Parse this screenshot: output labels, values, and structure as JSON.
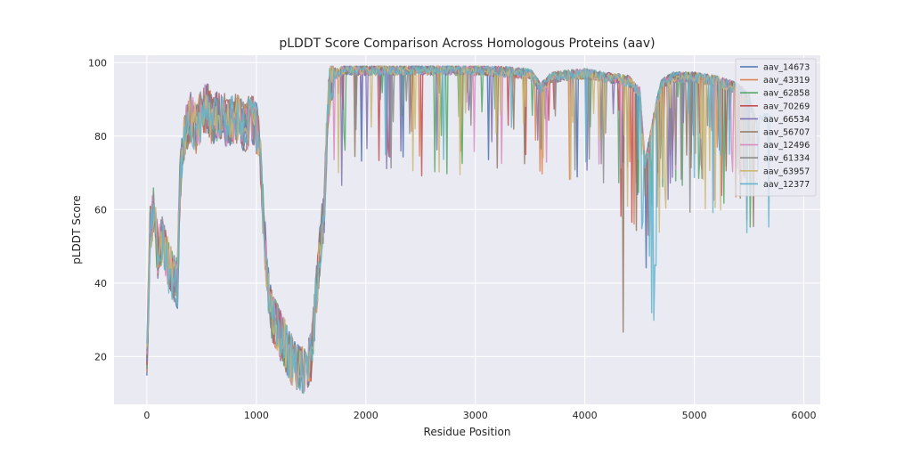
{
  "chart_data": {
    "type": "line",
    "title": "pLDDT Score Comparison Across Homologous Proteins (aav)",
    "xlabel": "Residue Position",
    "ylabel": "pLDDT Score",
    "xlim": [
      -300,
      6150
    ],
    "ylim": [
      7,
      102
    ],
    "xticks": [
      0,
      1000,
      2000,
      3000,
      4000,
      5000,
      6000
    ],
    "yticks": [
      20,
      40,
      60,
      80,
      100
    ],
    "grid": true,
    "legend_position": "top-right",
    "colors": {
      "background": "#eaeaf2",
      "grid": "#ffffff"
    },
    "series": [
      {
        "name": "aav_14673",
        "color": "#4c72b0",
        "end": 5450
      },
      {
        "name": "aav_43319",
        "color": "#dd8452",
        "end": 5500
      },
      {
        "name": "aav_62858",
        "color": "#55a868",
        "end": 5530
      },
      {
        "name": "aav_70269",
        "color": "#c44e52",
        "end": 5500
      },
      {
        "name": "aav_66534",
        "color": "#8172b3",
        "end": 5520
      },
      {
        "name": "aav_56707",
        "color": "#937860",
        "end": 5560
      },
      {
        "name": "aav_12496",
        "color": "#da8bc3",
        "end": 5480
      },
      {
        "name": "aav_61334",
        "color": "#8c8c8c",
        "end": 5540
      },
      {
        "name": "aav_63957",
        "color": "#ccb974",
        "end": 5560
      },
      {
        "name": "aav_12377",
        "color": "#64b5cd",
        "end": 5700
      }
    ],
    "profile": {
      "x": [
        0,
        10,
        30,
        60,
        100,
        150,
        200,
        240,
        280,
        300,
        320,
        360,
        400,
        450,
        500,
        550,
        600,
        650,
        700,
        750,
        800,
        850,
        900,
        950,
        1000,
        1020,
        1040,
        1060,
        1080,
        1100,
        1150,
        1200,
        1250,
        1300,
        1350,
        1400,
        1450,
        1500,
        1550,
        1600,
        1620,
        1650,
        1680,
        1700,
        1750,
        1800,
        2000,
        2500,
        3000,
        3500,
        3600,
        3700,
        4000,
        4400,
        4500,
        4550,
        4600,
        4650,
        4700,
        4800,
        5000,
        5200,
        5400,
        5500,
        5550
      ],
      "y": [
        18,
        30,
        55,
        60,
        48,
        52,
        44,
        42,
        40,
        65,
        75,
        82,
        85,
        82,
        86,
        88,
        84,
        86,
        85,
        83,
        85,
        84,
        82,
        85,
        82,
        80,
        72,
        60,
        50,
        40,
        30,
        27,
        24,
        20,
        18,
        17,
        16,
        20,
        38,
        55,
        60,
        85,
        96,
        97,
        97,
        98,
        98,
        98,
        98,
        97,
        93,
        96,
        97,
        95,
        92,
        72,
        80,
        88,
        94,
        96,
        96,
        95,
        93,
        90,
        85
      ]
    }
  }
}
